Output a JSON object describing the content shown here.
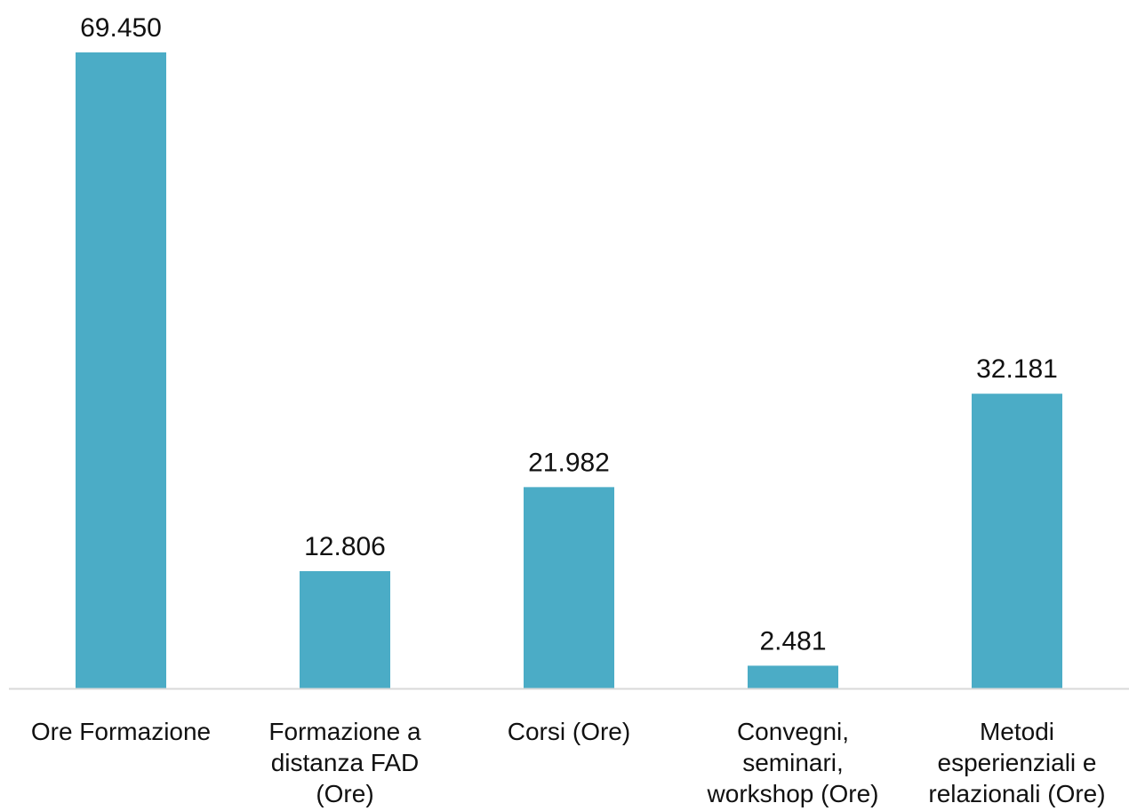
{
  "chart_data": {
    "type": "bar",
    "categories": [
      [
        "Ore Formazione"
      ],
      [
        "Formazione a",
        "distanza FAD",
        "(Ore)"
      ],
      [
        "Corsi (Ore)"
      ],
      [
        "Convegni,",
        "seminari,",
        "workshop (Ore)"
      ],
      [
        "Metodi",
        "esperienziali e",
        "relazionali (Ore)"
      ]
    ],
    "values": [
      69450,
      12806,
      21982,
      2481,
      32181
    ],
    "value_labels": [
      "69.450",
      "12.806",
      "21.982",
      "2.481",
      "32.181"
    ],
    "ylim": [
      0,
      69450
    ],
    "grid": false,
    "legend": "none",
    "colors": {
      "bar": "#4BACC6",
      "axis": "#D9D9D9",
      "text": "#111111"
    }
  }
}
